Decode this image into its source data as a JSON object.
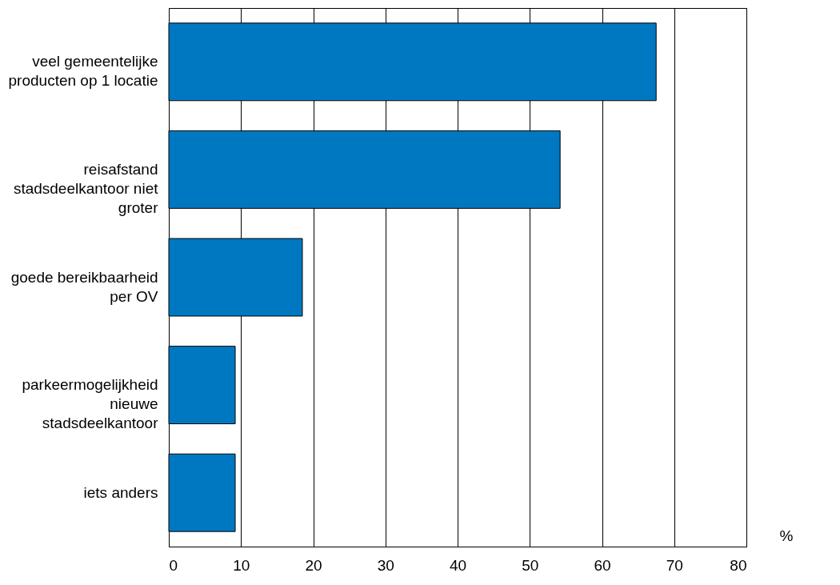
{
  "chart_data": {
    "type": "bar",
    "orientation": "horizontal",
    "xlabel": "%",
    "categories": [
      "veel gemeentelijke producten op 1 locatie",
      "reisafstand stadsdeelkantoor niet groter",
      "goede bereikbaarheid per OV",
      "parkeermogelijkheid nieuwe stadsdeelkantoor",
      "iets anders"
    ],
    "values": [
      67.5,
      54.2,
      18.5,
      9.2,
      9.2
    ],
    "color": "#0078c1",
    "xlim": [
      0,
      80
    ],
    "xticks": [
      0,
      10,
      20,
      30,
      40,
      50,
      60,
      70,
      80
    ],
    "grid": "x"
  }
}
